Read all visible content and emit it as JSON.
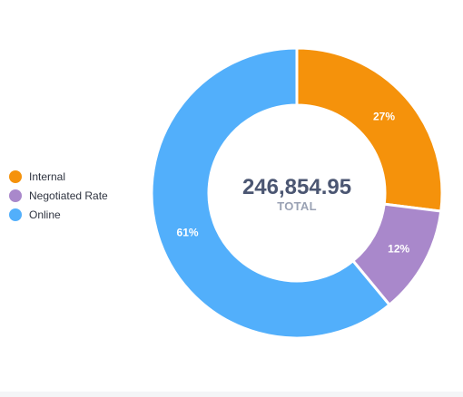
{
  "chart_data": {
    "type": "pie",
    "total_value": "246,854.95",
    "total_label": "TOTAL",
    "slices": [
      {
        "name": "Internal",
        "value": 27,
        "label": "27%",
        "color": "#f5920b"
      },
      {
        "name": "Negotiated Rate",
        "value": 12,
        "label": "12%",
        "color": "#a988cb"
      },
      {
        "name": "Online",
        "value": 61,
        "label": "61%",
        "color": "#52affb"
      }
    ],
    "legend_position": "left"
  }
}
